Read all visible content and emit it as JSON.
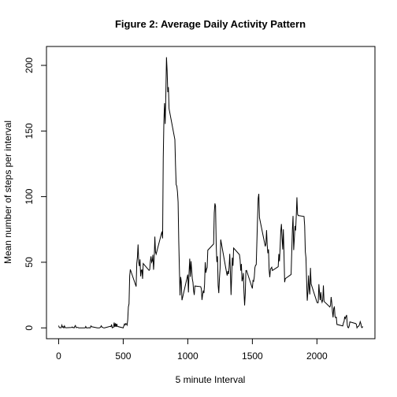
{
  "chart_data": {
    "type": "line",
    "title": "Figure 2: Average Daily Activity Pattern",
    "x_label": "5 minute Interval",
    "y_label": "Mean number of steps per interval",
    "color": "#000000",
    "x": [
      0,
      5,
      10,
      15,
      20,
      25,
      30,
      35,
      40,
      45,
      50,
      55,
      100,
      105,
      110,
      115,
      120,
      125,
      130,
      135,
      140,
      145,
      150,
      155,
      200,
      205,
      210,
      215,
      220,
      225,
      230,
      235,
      240,
      245,
      250,
      255,
      300,
      305,
      310,
      315,
      320,
      325,
      330,
      335,
      340,
      345,
      350,
      355,
      400,
      405,
      410,
      415,
      420,
      425,
      430,
      435,
      440,
      445,
      450,
      455,
      500,
      505,
      510,
      515,
      520,
      525,
      530,
      535,
      540,
      545,
      550,
      555,
      600,
      605,
      610,
      615,
      620,
      625,
      630,
      635,
      640,
      645,
      650,
      655,
      700,
      705,
      710,
      715,
      720,
      725,
      730,
      735,
      740,
      745,
      750,
      755,
      800,
      805,
      810,
      815,
      820,
      825,
      830,
      835,
      840,
      845,
      850,
      855,
      900,
      905,
      910,
      915,
      920,
      925,
      930,
      935,
      940,
      945,
      950,
      955,
      1000,
      1005,
      1010,
      1015,
      1020,
      1025,
      1030,
      1035,
      1040,
      1045,
      1050,
      1055,
      1100,
      1105,
      1110,
      1115,
      1120,
      1125,
      1130,
      1135,
      1140,
      1145,
      1150,
      1155,
      1200,
      1205,
      1210,
      1215,
      1220,
      1225,
      1230,
      1235,
      1240,
      1245,
      1250,
      1255,
      1300,
      1305,
      1310,
      1315,
      1320,
      1325,
      1330,
      1335,
      1340,
      1345,
      1350,
      1355,
      1400,
      1405,
      1410,
      1415,
      1420,
      1425,
      1430,
      1435,
      1440,
      1445,
      1450,
      1455,
      1500,
      1505,
      1510,
      1515,
      1520,
      1525,
      1530,
      1535,
      1540,
      1545,
      1550,
      1555,
      1600,
      1605,
      1610,
      1615,
      1620,
      1625,
      1630,
      1635,
      1640,
      1645,
      1650,
      1655,
      1700,
      1705,
      1710,
      1715,
      1720,
      1725,
      1730,
      1735,
      1740,
      1745,
      1750,
      1755,
      1800,
      1805,
      1810,
      1815,
      1820,
      1825,
      1830,
      1835,
      1840,
      1845,
      1850,
      1855,
      1900,
      1905,
      1910,
      1915,
      1920,
      1925,
      1930,
      1935,
      1940,
      1945,
      1950,
      1955,
      2000,
      2005,
      2010,
      2015,
      2020,
      2025,
      2030,
      2035,
      2040,
      2045,
      2050,
      2055,
      2100,
      2105,
      2110,
      2115,
      2120,
      2125,
      2130,
      2135,
      2140,
      2145,
      2150,
      2155,
      2200,
      2205,
      2210,
      2215,
      2220,
      2225,
      2230,
      2235,
      2240,
      2245,
      2250,
      2255,
      2300,
      2305,
      2310,
      2315,
      2320,
      2325,
      2330,
      2335,
      2340,
      2345,
      2350,
      2355
    ],
    "values": [
      1.7,
      0.3,
      0.1,
      0.2,
      0.1,
      2.1,
      0.5,
      0.9,
      0,
      1.5,
      0.3,
      0.1,
      0.3,
      0.7,
      0.2,
      0.3,
      0,
      1.1,
      1.8,
      0.2,
      0.2,
      0.4,
      0.3,
      0,
      0,
      0,
      1.1,
      0,
      0,
      0.1,
      0,
      0.2,
      0,
      0,
      1.5,
      0.9,
      0,
      0,
      0,
      0,
      0.2,
      0.6,
      1.6,
      0.6,
      0.5,
      0.1,
      0,
      0,
      1.2,
      0.9,
      2.6,
      0,
      0.3,
      0.4,
      4.1,
      0.7,
      3.5,
      0.8,
      3.1,
      1.1,
      0,
      1.6,
      3.0,
      2.2,
      3.3,
      3.0,
      2.1,
      6.1,
      16,
      18.3,
      39.5,
      44.5,
      31.5,
      49.3,
      53.8,
      63.5,
      50,
      47.1,
      52.2,
      39.3,
      44,
      44.2,
      37.4,
      49,
      43.8,
      44.4,
      50.5,
      54.5,
      49.9,
      51,
      55.7,
      44.3,
      52.3,
      69.5,
      57.8,
      56.2,
      73.4,
      68.2,
      129.4,
      157.5,
      171.2,
      155.4,
      177.3,
      206.2,
      195.9,
      179.6,
      183.4,
      167,
      143.5,
      124,
      109.1,
      108.1,
      103.7,
      95.9,
      66.2,
      45.2,
      24.8,
      38.8,
      35,
      21.1,
      40.6,
      27,
      42.4,
      52.7,
      38.9,
      50.8,
      44.3,
      37.4,
      34.7,
      28.3,
      25.1,
      31.9,
      31.4,
      29.7,
      21.3,
      25.5,
      28.4,
      26.5,
      33.4,
      50,
      42,
      44.6,
      46,
      59.2,
      63.9,
      87.7,
      94.8,
      92.8,
      63.4,
      50.2,
      54.5,
      32.4,
      26.5,
      37.7,
      45.1,
      67.3,
      42.3,
      39.9,
      43.3,
      41,
      46.2,
      56.4,
      42.8,
      25.1,
      40,
      53.5,
      47.3,
      60.8,
      55.8,
      52,
      43.6,
      48.7,
      35.5,
      37.5,
      41.8,
      27.5,
      17.1,
      26.1,
      43.6,
      43.8,
      30,
      36.1,
      35.5,
      38.8,
      46,
      47.8,
      48.1,
      65.3,
      82.9,
      98.7,
      102.1,
      84,
      62.1,
      64.1,
      74.5,
      63.2,
      56.9,
      59.8,
      43.9,
      38.6,
      44.7,
      45.5,
      46.2,
      43.7,
      46.6,
      56.3,
      50.7,
      61.2,
      73.4,
      79.1,
      68.9,
      59.7,
      75.1,
      56.5,
      34.8,
      37.5,
      40.7,
      58,
      74.7,
      85.3,
      59.3,
      67.8,
      77.7,
      74.2,
      85.3,
      99.5,
      86.6,
      85.6,
      84.9,
      77.8,
      58,
      53.4,
      36.3,
      20.7,
      27.4,
      40,
      30.2,
      25.5,
      45.7,
      33.5,
      19.6,
      19,
      19.3,
      33.3,
      26.8,
      21.2,
      27.3,
      21.3,
      19.5,
      21.3,
      32.3,
      20.2,
      15.9,
      17.2,
      23.5,
      19.2,
      12.5,
      8,
      14.7,
      16.3,
      8.7,
      7.8,
      8.1,
      2.6,
      1.5,
      3.7,
      4.8,
      8.5,
      7.1,
      8.7,
      9.8,
      2.2,
      0.3,
      0.1,
      1.6,
      4.6,
      3.3,
      2.8,
      0,
      0.8,
      1,
      1.6,
      2.6,
      4.7,
      3.3,
      0.6,
      0.2,
      1.1
    ],
    "xlim": [
      -94.2,
      2449.2
    ],
    "xticks": [
      0,
      500,
      1000,
      1500,
      2000
    ],
    "ylim": [
      -8.25,
      214.4
    ],
    "yticks": [
      0,
      50,
      100,
      150,
      200
    ]
  }
}
